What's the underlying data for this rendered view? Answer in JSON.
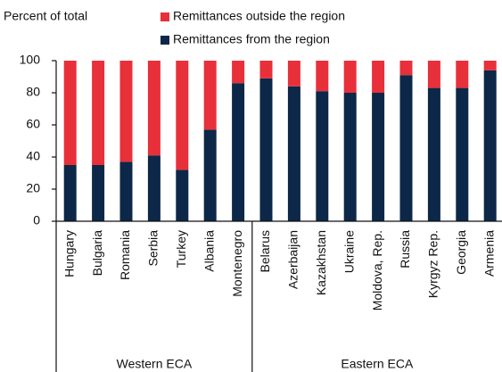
{
  "chart_data": {
    "type": "stacked_bar",
    "ylabel": "Percent of total",
    "categories": [
      "Hungary",
      "Bulgaria",
      "Romania",
      "Serbia",
      "Turkey",
      "Albania",
      "Montenegro",
      "Belarus",
      "Azerbaijan",
      "Kazakhstan",
      "Ukraine",
      "Moldova, Rep.",
      "Russia",
      "Kyrgyz Rep.",
      "Georgia",
      "Armenia"
    ],
    "series": [
      {
        "name": "Remittances outside the region",
        "color": "#e8303a",
        "values": [
          65,
          65,
          63,
          59,
          68,
          43,
          14,
          11,
          16,
          19,
          20,
          20,
          9,
          17,
          17,
          6
        ]
      },
      {
        "name": "Remittances from the region",
        "color": "#0c2748",
        "values": [
          35,
          35,
          37,
          41,
          32,
          57,
          86,
          89,
          84,
          81,
          80,
          80,
          91,
          83,
          83,
          94
        ]
      }
    ],
    "groups": [
      {
        "name": "Western ECA",
        "size": 7
      },
      {
        "name": "Eastern ECA",
        "size": 9
      }
    ],
    "ylim": [
      0,
      100
    ],
    "yticks": [
      0,
      20,
      40,
      60,
      80,
      100
    ]
  }
}
